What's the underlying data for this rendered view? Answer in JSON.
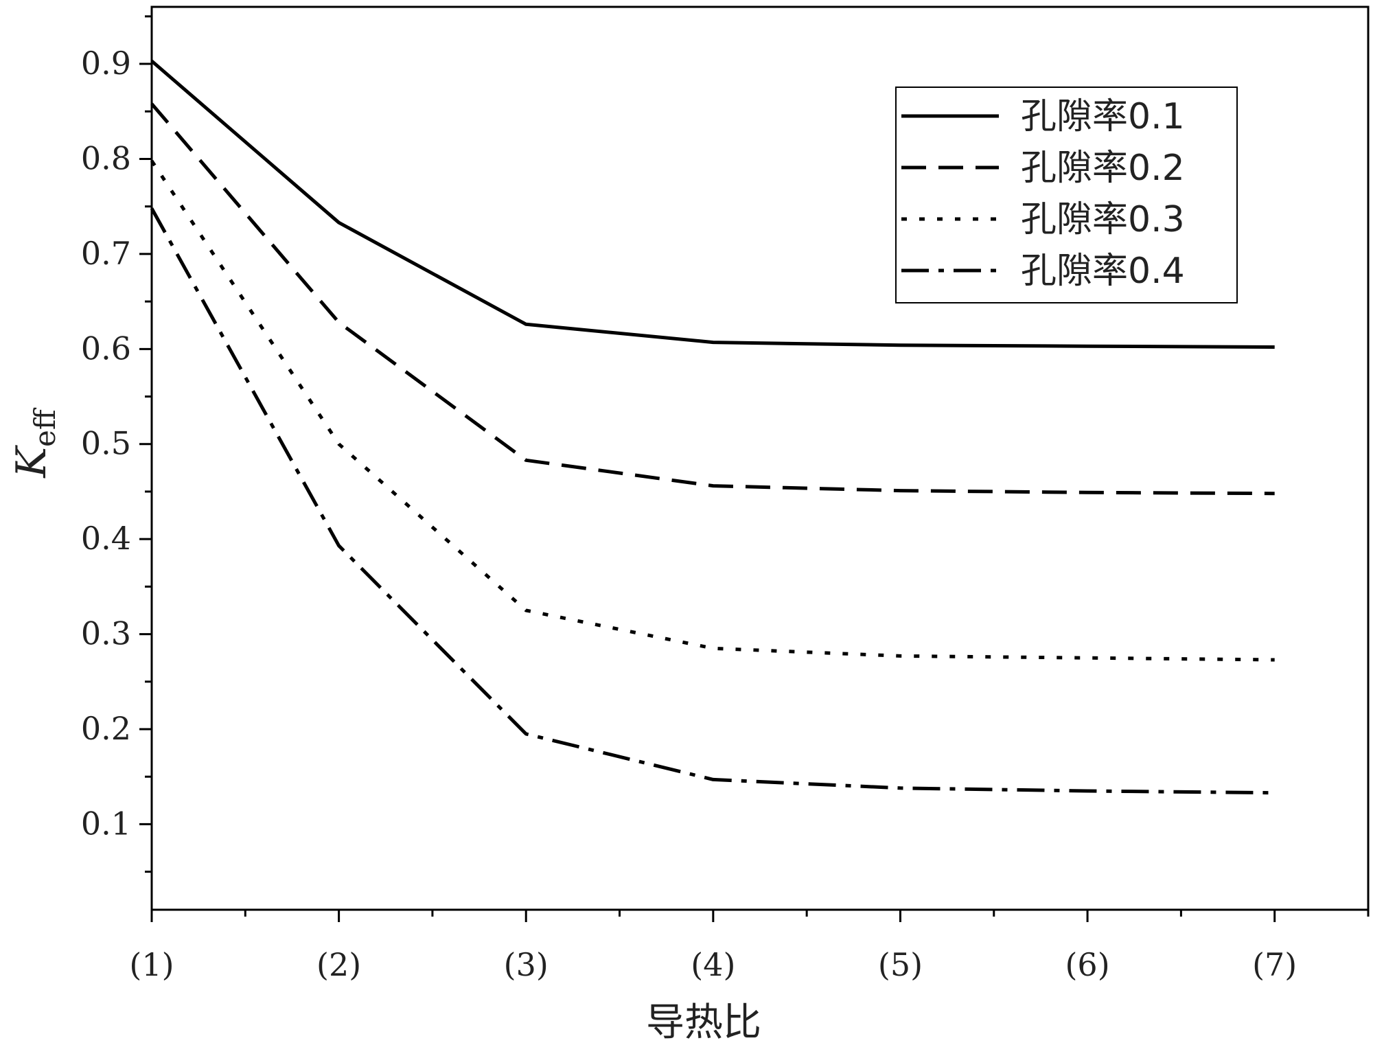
{
  "chart_data": {
    "type": "line",
    "xlabel": "导热比",
    "ylabel": "K",
    "ylabel_subscript": "eff",
    "categories": [
      "(1)",
      "(2)",
      "(3)",
      "(4)",
      "(5)",
      "(6)",
      "(7)"
    ],
    "x": [
      1,
      2,
      3,
      4,
      5,
      6,
      7
    ],
    "xlim": [
      1,
      7.5
    ],
    "ylim": [
      0.01,
      0.96
    ],
    "yticks": [
      "0.1",
      "0.2",
      "0.3",
      "0.4",
      "0.5",
      "0.6",
      "0.7",
      "0.8",
      "0.9"
    ],
    "grid": false,
    "legend_position": "top-right",
    "series": [
      {
        "name": "孔隙率0.1",
        "style": "solid",
        "values": [
          0.903,
          0.733,
          0.626,
          0.607,
          0.604,
          0.603,
          0.602
        ]
      },
      {
        "name": "孔隙率0.2",
        "style": "dash",
        "values": [
          0.858,
          0.628,
          0.483,
          0.456,
          0.451,
          0.449,
          0.448
        ]
      },
      {
        "name": "孔隙率0.3",
        "style": "dot",
        "values": [
          0.798,
          0.5,
          0.325,
          0.285,
          0.277,
          0.275,
          0.273
        ]
      },
      {
        "name": "孔隙率0.4",
        "style": "dashdot",
        "values": [
          0.748,
          0.393,
          0.195,
          0.147,
          0.138,
          0.135,
          0.133
        ]
      }
    ]
  }
}
